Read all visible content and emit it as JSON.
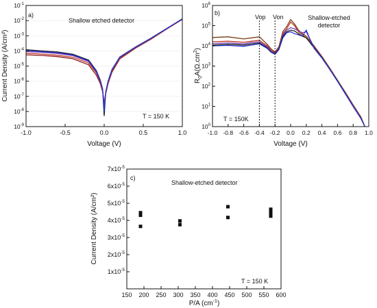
{
  "chart_data": [
    {
      "panel": "a)",
      "type": "line",
      "annotations": [
        "Shallow etched detector",
        "T = 150 K"
      ],
      "xlabel": "Voltage (V)",
      "ylabel": "Current Density (A/cm²)",
      "xlim": [
        -1.0,
        1.0
      ],
      "ylim": [
        1e-09,
        0.1
      ],
      "yscale": "log",
      "xticks": [
        "-1.0",
        "-0.5",
        "0.0",
        "0.5",
        "1.0"
      ],
      "yticks": [
        {
          "mant": "10",
          "exp": "-9"
        },
        {
          "mant": "10",
          "exp": "-8"
        },
        {
          "mant": "10",
          "exp": "-7"
        },
        {
          "mant": "10",
          "exp": "-6"
        },
        {
          "mant": "10",
          "exp": "-5"
        },
        {
          "mant": "10",
          "exp": "-4"
        },
        {
          "mant": "10",
          "exp": "-3"
        },
        {
          "mant": "10",
          "exp": "-2"
        },
        {
          "mant": "10",
          "exp": "-1"
        }
      ],
      "grid": "horizontal",
      "series": [
        {
          "color": "#1a1a1a",
          "x": [
            -1.0,
            -0.8,
            -0.6,
            -0.4,
            -0.2,
            -0.1,
            -0.05,
            -0.02,
            0.0,
            0.02,
            0.05,
            0.1,
            0.2,
            0.4,
            0.6,
            0.8,
            1.0
          ],
          "y": [
            0.00012,
            0.0001,
            8.5e-05,
            6e-05,
            2.5e-05,
            5e-06,
            1.2e-06,
            3e-07,
            5e-09,
            2e-07,
            1e-06,
            6e-06,
            4e-05,
            0.00018,
            0.0007,
            0.003,
            0.013
          ]
        },
        {
          "color": "#8b1a1a",
          "x": [
            -1.0,
            -0.8,
            -0.6,
            -0.4,
            -0.2,
            -0.1,
            -0.05,
            -0.02,
            0.0,
            0.02,
            0.05,
            0.1,
            0.2,
            0.4,
            0.6,
            0.8,
            1.0
          ],
          "y": [
            5.5e-05,
            5e-05,
            4.2e-05,
            3e-05,
            1.2e-05,
            2.5e-06,
            7e-07,
            2e-07,
            3e-08,
            1.5e-07,
            7e-07,
            4e-06,
            3e-05,
            0.00015,
            0.0006,
            0.0028,
            0.012
          ]
        },
        {
          "color": "#c0392b",
          "x": [
            -1.0,
            -0.8,
            -0.6,
            -0.4,
            -0.2,
            -0.1,
            -0.05,
            -0.02,
            0.0,
            0.02,
            0.05,
            0.1,
            0.2,
            0.4,
            0.6,
            0.8,
            1.0
          ],
          "y": [
            7e-05,
            6.2e-05,
            5.2e-05,
            3.8e-05,
            1.6e-05,
            3.5e-06,
            9e-07,
            2.5e-07,
            4e-08,
            1.8e-07,
            8e-07,
            5e-06,
            3.5e-05,
            0.00016,
            0.00065,
            0.0029,
            0.0125
          ]
        },
        {
          "color": "#7b3fb5",
          "x": [
            -1.0,
            -0.8,
            -0.6,
            -0.4,
            -0.2,
            -0.1,
            -0.05,
            -0.02,
            0.0,
            0.02,
            0.05,
            0.1,
            0.2,
            0.4,
            0.6,
            0.8,
            1.0
          ],
          "y": [
            9e-05,
            8e-05,
            6.8e-05,
            4.8e-05,
            2e-05,
            4e-06,
            1e-06,
            2.8e-07,
            2e-08,
            1.9e-07,
            9e-07,
            5.5e-06,
            3.8e-05,
            0.00017,
            0.00068,
            0.003,
            0.0128
          ]
        },
        {
          "color": "#2233cc",
          "x": [
            -1.0,
            -0.8,
            -0.6,
            -0.4,
            -0.2,
            -0.1,
            -0.05,
            -0.02,
            0.0,
            0.02,
            0.05,
            0.1,
            0.2,
            0.4,
            0.6,
            0.8,
            1.0
          ],
          "y": [
            0.000105,
            9e-05,
            7.6e-05,
            5.4e-05,
            2.2e-05,
            4.5e-06,
            1.1e-06,
            3e-07,
            1e-08,
            2e-07,
            9.5e-07,
            5.8e-06,
            3.9e-05,
            0.000175,
            0.0007,
            0.003,
            0.013
          ]
        }
      ]
    },
    {
      "panel": "b)",
      "type": "line",
      "annotations": [
        "Shallow-etched",
        "detector",
        "T = 150K",
        "Vop",
        "Von"
      ],
      "xlabel": "Voltage (V)",
      "ylabel_main": "R",
      "ylabel_sub": "0",
      "ylabel_rest": "A(Ω.cm",
      "ylabel_sup": "2",
      "ylabel_end": ")",
      "xlim": [
        -1.0,
        1.0
      ],
      "ylim": [
        1.0,
        1000000.0
      ],
      "yscale": "log",
      "xticks": [
        "-1.0",
        "-0.8",
        "-0.6",
        "-0.4",
        "-0.2",
        "0.0",
        "0.2",
        "0.4",
        "0.6",
        "0.8",
        "1.0"
      ],
      "yticks": [
        {
          "mant": "10",
          "exp": "0"
        },
        {
          "mant": "10",
          "exp": "1"
        },
        {
          "mant": "10",
          "exp": "2"
        },
        {
          "mant": "10",
          "exp": "3"
        },
        {
          "mant": "10",
          "exp": "4"
        },
        {
          "mant": "10",
          "exp": "5"
        },
        {
          "mant": "10",
          "exp": "6"
        }
      ],
      "vlines": [
        -0.4,
        -0.2
      ],
      "series": [
        {
          "color": "#7a3b10",
          "x": [
            -1.0,
            -0.8,
            -0.6,
            -0.5,
            -0.4,
            -0.3,
            -0.25,
            -0.2,
            -0.15,
            -0.1,
            -0.05,
            0.0,
            0.05,
            0.1,
            0.15,
            0.2,
            0.3,
            0.4,
            0.5,
            0.6,
            0.7,
            0.8,
            0.9,
            0.95
          ],
          "y": [
            26000,
            28000,
            22000,
            25000,
            28000,
            12000,
            7000,
            5000,
            9000,
            50000,
            90000,
            200000,
            120000,
            60000,
            40000,
            30000,
            10000,
            3000,
            800,
            200,
            50,
            12,
            3,
            1
          ]
        },
        {
          "color": "#c0392b",
          "x": [
            -1.0,
            -0.8,
            -0.6,
            -0.5,
            -0.4,
            -0.3,
            -0.25,
            -0.2,
            -0.15,
            -0.1,
            -0.05,
            0.0,
            0.05,
            0.1,
            0.15,
            0.2,
            0.3,
            0.4,
            0.5,
            0.6,
            0.7,
            0.8,
            0.9,
            0.95
          ],
          "y": [
            16000,
            17000,
            15000,
            17000,
            19000,
            10000,
            6000,
            4500,
            8000,
            40000,
            70000,
            150000,
            100000,
            50000,
            35000,
            25000,
            9000,
            2800,
            750,
            190,
            45,
            11,
            2.8,
            1
          ]
        },
        {
          "color": "#7b3fb5",
          "x": [
            -1.0,
            -0.8,
            -0.6,
            -0.5,
            -0.4,
            -0.3,
            -0.25,
            -0.2,
            -0.15,
            -0.1,
            -0.05,
            0.0,
            0.05,
            0.1,
            0.15,
            0.2,
            0.3,
            0.4,
            0.5,
            0.6,
            0.7,
            0.8,
            0.9,
            0.95
          ],
          "y": [
            13000,
            14000,
            12500,
            14500,
            16000,
            9000,
            5500,
            4200,
            7500,
            35000,
            60000,
            80000,
            70000,
            55000,
            45000,
            50000,
            8500,
            2700,
            720,
            185,
            44,
            10.5,
            2.7,
            1
          ]
        },
        {
          "color": "#1a1a1a",
          "x": [
            -1.0,
            -0.8,
            -0.6,
            -0.5,
            -0.4,
            -0.3,
            -0.25,
            -0.2,
            -0.15,
            -0.1,
            -0.05,
            0.0,
            0.05,
            0.1,
            0.15,
            0.2,
            0.3,
            0.4,
            0.5,
            0.6,
            0.7,
            0.8,
            0.9,
            0.95
          ],
          "y": [
            11000,
            12000,
            11000,
            12500,
            14000,
            8000,
            5000,
            4000,
            7000,
            30000,
            50000,
            60000,
            55000,
            40000,
            30000,
            25000,
            8000,
            2600,
            700,
            180,
            43,
            10,
            2.6,
            1
          ]
        },
        {
          "color": "#2233cc",
          "x": [
            -1.0,
            -0.8,
            -0.6,
            -0.5,
            -0.4,
            -0.3,
            -0.25,
            -0.2,
            -0.15,
            -0.1,
            -0.05,
            0.0,
            0.05,
            0.1,
            0.15,
            0.2,
            0.25,
            0.3,
            0.4,
            0.5,
            0.6,
            0.7,
            0.8,
            0.9,
            0.95
          ],
          "y": [
            10000,
            10500,
            9500,
            11000,
            12500,
            7500,
            4800,
            3800,
            6500,
            25000,
            45000,
            50000,
            40000,
            35000,
            30000,
            60000,
            20000,
            7500,
            2500,
            680,
            175,
            42,
            10,
            2.5,
            1
          ]
        }
      ]
    },
    {
      "panel": "c)",
      "type": "scatter",
      "annotations": [
        "Shallow-etched detector",
        "T = 150 K"
      ],
      "xlabel": "P/A (cm",
      "xlabel_sup": "-1",
      "xlabel_end": ")",
      "ylabel": "Current Density (A/cm²)",
      "xlim": [
        150,
        600
      ],
      "ylim": [
        0,
        7e-05
      ],
      "xticks": [
        "150",
        "200",
        "250",
        "300",
        "350",
        "400",
        "450",
        "500",
        "550",
        "600"
      ],
      "yticks": [
        {
          "mant": "1x10",
          "exp": "-5"
        },
        {
          "mant": "2x10",
          "exp": "-5"
        },
        {
          "mant": "3x10",
          "exp": "-5"
        },
        {
          "mant": "4x10",
          "exp": "-5"
        },
        {
          "mant": "5x10",
          "exp": "-5"
        },
        {
          "mant": "6x10",
          "exp": "-5"
        },
        {
          "mant": "7x10",
          "exp": "-5"
        }
      ],
      "points": [
        {
          "x": 190,
          "y": 4.45e-05
        },
        {
          "x": 190,
          "y": 4.3e-05
        },
        {
          "x": 190,
          "y": 3.65e-05
        },
        {
          "x": 305,
          "y": 3.97e-05
        },
        {
          "x": 305,
          "y": 3.75e-05
        },
        {
          "x": 445,
          "y": 4.8e-05
        },
        {
          "x": 445,
          "y": 4.17e-05
        },
        {
          "x": 570,
          "y": 4.65e-05
        },
        {
          "x": 570,
          "y": 4.55e-05
        },
        {
          "x": 570,
          "y": 4.4e-05
        },
        {
          "x": 570,
          "y": 4.25e-05
        }
      ]
    }
  ]
}
